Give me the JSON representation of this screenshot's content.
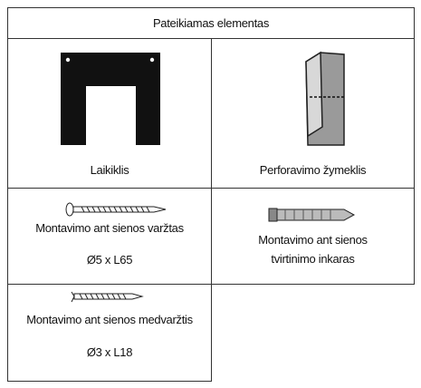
{
  "table": {
    "title": "Pateikiamas elementas",
    "items": [
      {
        "lines": [
          "Laikiklis"
        ]
      },
      {
        "lines": [
          "Perforavimo žymeklis"
        ]
      },
      {
        "lines": [
          "Montavimo ant sienos varžtas",
          "Ø5 x L65"
        ]
      },
      {
        "lines": [
          "Montavimo ant sienos",
          "tvirtinimo inkaras"
        ]
      },
      {
        "lines": [
          "Montavimo ant sienos medvaržtis",
          "Ø3 x L18"
        ]
      }
    ]
  }
}
